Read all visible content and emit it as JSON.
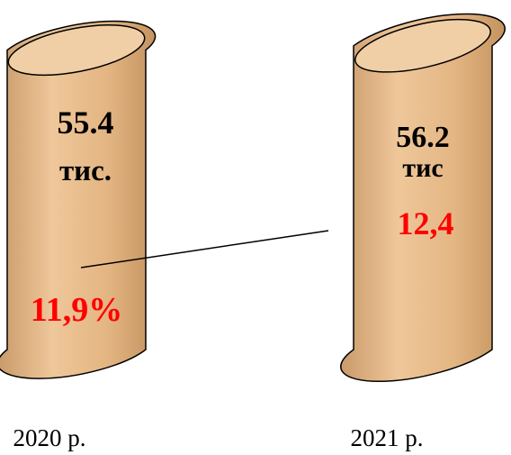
{
  "chart_data": {
    "type": "bar",
    "categories": [
      "2020 р.",
      "2021 р."
    ],
    "values": [
      55.4,
      56.2
    ],
    "value_labels": [
      [
        "55.4",
        "тис."
      ],
      [
        "56.2",
        "тис"
      ]
    ],
    "percent_labels": [
      "11,9%",
      "12,4"
    ],
    "percent_values": [
      11.9,
      12.4
    ],
    "title": "",
    "xlabel": "",
    "ylabel": "",
    "grid": false,
    "legend": "none"
  },
  "colors": {
    "cylinder_fill": "#e8bd8c",
    "cylinder_top": "#f0cfa6",
    "cylinder_stroke": "#000000",
    "percent_text": "#ff0000",
    "text": "#000000",
    "connector": "#000000"
  }
}
